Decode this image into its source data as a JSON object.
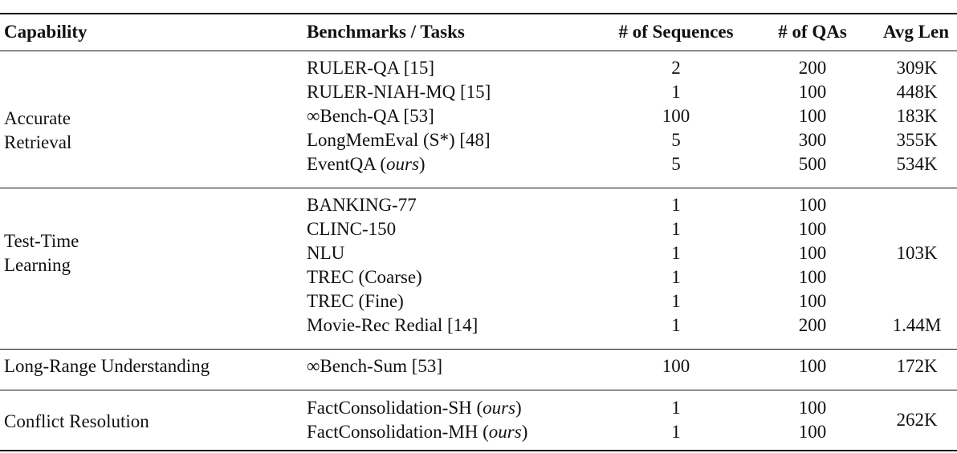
{
  "table": {
    "headers": {
      "capability": "Capability",
      "benchmarks": "Benchmarks / Tasks",
      "sequences": "# of Sequences",
      "qas": "# of QAs",
      "avg_len": "Avg Len"
    },
    "groups": [
      {
        "capability_line1": "Accurate",
        "capability_line2": "Retrieval",
        "rows": [
          {
            "name": "RULER-QA [15]",
            "sequences": "2",
            "qas": "200",
            "avg_len": "309K"
          },
          {
            "name": "RULER-NIAH-MQ [15]",
            "sequences": "1",
            "qas": "100",
            "avg_len": "448K"
          },
          {
            "name": "∞Bench-QA [53]",
            "sequences": "100",
            "qas": "100",
            "avg_len": "183K"
          },
          {
            "name": "LongMemEval (S*) [48]",
            "sequences": "5",
            "qas": "300",
            "avg_len": "355K"
          },
          {
            "name_prefix": "EventQA (",
            "name_italic": "ours",
            "name_suffix": ")",
            "sequences": "5",
            "qas": "500",
            "avg_len": "534K"
          }
        ]
      },
      {
        "capability_line1": "Test-Time",
        "capability_line2": "Learning",
        "shared_avg_len": "103K",
        "rows": [
          {
            "name": "BANKING-77",
            "sequences": "1",
            "qas": "100"
          },
          {
            "name": "CLINC-150",
            "sequences": "1",
            "qas": "100"
          },
          {
            "name": "NLU",
            "sequences": "1",
            "qas": "100"
          },
          {
            "name": "TREC (Coarse)",
            "sequences": "1",
            "qas": "100"
          },
          {
            "name": "TREC (Fine)",
            "sequences": "1",
            "qas": "100"
          },
          {
            "name": "Movie-Rec Redial [14]",
            "sequences": "1",
            "qas": "200",
            "avg_len": "1.44M"
          }
        ]
      },
      {
        "capability": "Long-Range Understanding",
        "rows": [
          {
            "name": "∞Bench-Sum [53]",
            "sequences": "100",
            "qas": "100",
            "avg_len": "172K"
          }
        ]
      },
      {
        "capability": "Conflict Resolution",
        "shared_avg_len": "262K",
        "rows": [
          {
            "name_prefix": "FactConsolidation-SH (",
            "name_italic": "ours",
            "name_suffix": ")",
            "sequences": "1",
            "qas": "100"
          },
          {
            "name_prefix": "FactConsolidation-MH (",
            "name_italic": "ours",
            "name_suffix": ")",
            "sequences": "1",
            "qas": "100"
          }
        ]
      }
    ]
  }
}
